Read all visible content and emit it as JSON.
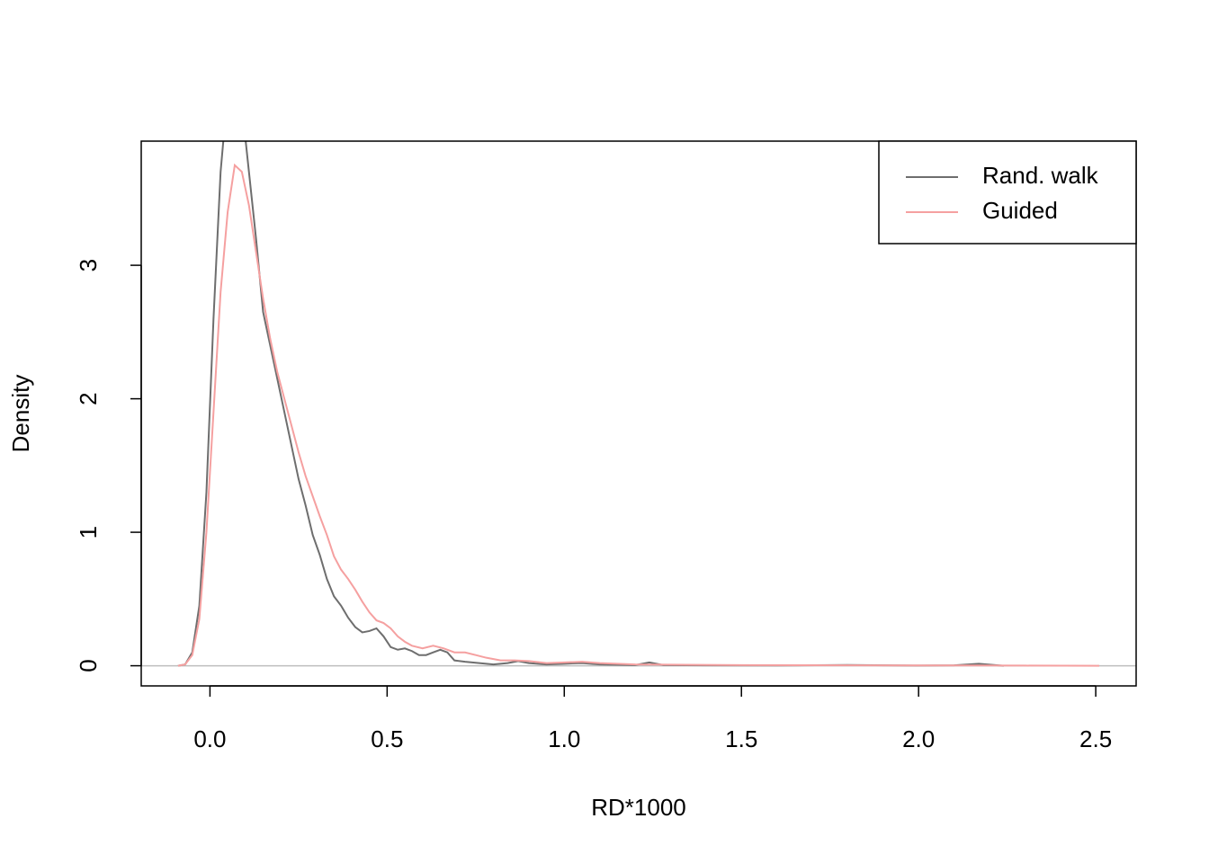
{
  "chart_data": {
    "type": "line",
    "xlabel": "RD*1000",
    "ylabel": "Density",
    "xlim": [
      -0.194,
      2.614
    ],
    "ylim": [
      -0.151,
      3.93
    ],
    "xticks": [
      {
        "value": 0,
        "label": "0.0"
      },
      0.5,
      {
        "value": 1,
        "label": "1.0"
      },
      1.5,
      {
        "value": 2,
        "label": "2.0"
      },
      2.5
    ],
    "yticks": [
      0,
      1,
      2,
      3
    ],
    "legend": "topright",
    "series": [
      {
        "name": "Rand. walk",
        "color": "#6e6e6e",
        "x": [
          -0.09,
          -0.07,
          -0.05,
          -0.03,
          -0.01,
          0.01,
          0.03,
          0.05,
          0.07,
          0.09,
          0.11,
          0.13,
          0.15,
          0.17,
          0.19,
          0.21,
          0.23,
          0.25,
          0.27,
          0.29,
          0.31,
          0.33,
          0.35,
          0.37,
          0.39,
          0.41,
          0.43,
          0.45,
          0.47,
          0.49,
          0.51,
          0.53,
          0.55,
          0.57,
          0.59,
          0.61,
          0.63,
          0.65,
          0.67,
          0.69,
          0.72,
          0.76,
          0.8,
          0.84,
          0.87,
          0.9,
          0.95,
          1.0,
          1.05,
          1.1,
          1.2,
          1.24,
          1.28,
          1.4,
          1.6,
          1.8,
          2.0,
          2.1,
          2.17,
          2.24
        ],
        "values": [
          0,
          0.01,
          0.1,
          0.45,
          1.3,
          2.6,
          3.7,
          4.3,
          4.4,
          4.2,
          3.7,
          3.2,
          2.65,
          2.4,
          2.15,
          1.9,
          1.65,
          1.4,
          1.2,
          0.98,
          0.83,
          0.65,
          0.52,
          0.45,
          0.36,
          0.29,
          0.25,
          0.26,
          0.28,
          0.22,
          0.14,
          0.12,
          0.13,
          0.11,
          0.08,
          0.08,
          0.1,
          0.12,
          0.1,
          0.04,
          0.03,
          0.02,
          0.01,
          0.02,
          0.035,
          0.02,
          0.01,
          0.015,
          0.02,
          0.01,
          0.005,
          0.025,
          0.005,
          0.003,
          0.002,
          0.006,
          0.001,
          0.003,
          0.015,
          0
        ]
      },
      {
        "name": "Guided",
        "color": "#f5a0a0",
        "x": [
          -0.09,
          -0.07,
          -0.05,
          -0.03,
          -0.01,
          0.01,
          0.03,
          0.05,
          0.07,
          0.09,
          0.11,
          0.13,
          0.15,
          0.17,
          0.19,
          0.21,
          0.23,
          0.25,
          0.27,
          0.29,
          0.31,
          0.33,
          0.35,
          0.37,
          0.39,
          0.41,
          0.43,
          0.45,
          0.47,
          0.49,
          0.51,
          0.53,
          0.55,
          0.57,
          0.6,
          0.63,
          0.66,
          0.69,
          0.72,
          0.75,
          0.78,
          0.82,
          0.86,
          0.9,
          0.95,
          1.0,
          1.05,
          1.1,
          1.2,
          1.3,
          1.5,
          1.8,
          2.1,
          2.3,
          2.51
        ],
        "values": [
          0,
          0.01,
          0.08,
          0.35,
          1.0,
          1.9,
          2.8,
          3.4,
          3.75,
          3.7,
          3.45,
          3.1,
          2.75,
          2.45,
          2.2,
          2.0,
          1.8,
          1.6,
          1.42,
          1.27,
          1.12,
          0.98,
          0.82,
          0.72,
          0.65,
          0.57,
          0.48,
          0.4,
          0.34,
          0.32,
          0.28,
          0.22,
          0.18,
          0.15,
          0.13,
          0.15,
          0.13,
          0.1,
          0.1,
          0.08,
          0.06,
          0.04,
          0.04,
          0.035,
          0.02,
          0.025,
          0.03,
          0.02,
          0.01,
          0.008,
          0.005,
          0.003,
          0.002,
          0.001,
          0
        ]
      }
    ]
  }
}
